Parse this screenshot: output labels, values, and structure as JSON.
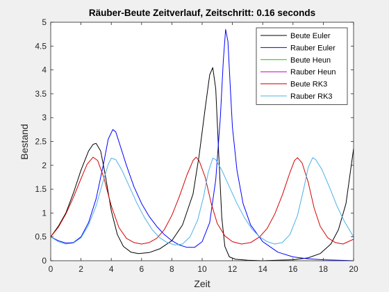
{
  "chart_data": {
    "type": "line",
    "title": "Räuber-Beute Zeitverlauf, Zeitschritt: 0.16 seconds",
    "xlabel": "Zeit",
    "ylabel": "Bestand",
    "xlim": [
      0,
      20
    ],
    "ylim": [
      0,
      5
    ],
    "xticks": [
      "0",
      "2",
      "4",
      "6",
      "8",
      "10",
      "12",
      "14",
      "16",
      "18",
      "20"
    ],
    "yticks": [
      "0",
      "0.5",
      "1",
      "1.5",
      "2",
      "2.5",
      "3",
      "3.5",
      "4",
      "4.5",
      "5"
    ],
    "grid": false,
    "legend_position": "top-right",
    "series": [
      {
        "name": "Beute Euler",
        "color": "#000000",
        "points": [
          [
            0,
            0.5
          ],
          [
            0.5,
            0.72
          ],
          [
            1,
            1.0
          ],
          [
            1.5,
            1.42
          ],
          [
            2,
            1.9
          ],
          [
            2.5,
            2.3
          ],
          [
            2.8,
            2.44
          ],
          [
            3.0,
            2.46
          ],
          [
            3.3,
            2.3
          ],
          [
            3.6,
            1.8
          ],
          [
            4,
            1.05
          ],
          [
            4.4,
            0.55
          ],
          [
            4.8,
            0.3
          ],
          [
            5.3,
            0.18
          ],
          [
            5.8,
            0.15
          ],
          [
            6.5,
            0.17
          ],
          [
            7.2,
            0.25
          ],
          [
            8,
            0.42
          ],
          [
            8.7,
            0.75
          ],
          [
            9.4,
            1.4
          ],
          [
            9.8,
            2.2
          ],
          [
            10.2,
            3.2
          ],
          [
            10.5,
            3.9
          ],
          [
            10.7,
            4.05
          ],
          [
            10.9,
            3.6
          ],
          [
            11.1,
            2.2
          ],
          [
            11.3,
            0.9
          ],
          [
            11.5,
            0.3
          ],
          [
            11.8,
            0.08
          ],
          [
            12.2,
            0.03
          ],
          [
            13,
            0.01
          ],
          [
            14,
            0.0
          ],
          [
            15,
            0.01
          ],
          [
            16,
            0.02
          ],
          [
            17,
            0.06
          ],
          [
            17.8,
            0.15
          ],
          [
            18.5,
            0.35
          ],
          [
            19,
            0.65
          ],
          [
            19.5,
            1.2
          ],
          [
            20,
            2.35
          ]
        ]
      },
      {
        "name": "Rauber Euler",
        "color": "#0000ff",
        "points": [
          [
            0,
            0.5
          ],
          [
            0.5,
            0.42
          ],
          [
            1,
            0.37
          ],
          [
            1.5,
            0.38
          ],
          [
            2,
            0.5
          ],
          [
            2.5,
            0.8
          ],
          [
            3,
            1.3
          ],
          [
            3.5,
            2.05
          ],
          [
            3.8,
            2.55
          ],
          [
            4.1,
            2.75
          ],
          [
            4.3,
            2.7
          ],
          [
            4.6,
            2.4
          ],
          [
            5,
            2.0
          ],
          [
            5.5,
            1.55
          ],
          [
            6,
            1.2
          ],
          [
            6.5,
            0.93
          ],
          [
            7,
            0.72
          ],
          [
            7.5,
            0.55
          ],
          [
            8,
            0.42
          ],
          [
            8.5,
            0.33
          ],
          [
            9,
            0.28
          ],
          [
            9.5,
            0.28
          ],
          [
            10,
            0.4
          ],
          [
            10.5,
            0.8
          ],
          [
            10.9,
            1.7
          ],
          [
            11.2,
            3.0
          ],
          [
            11.4,
            4.2
          ],
          [
            11.55,
            4.85
          ],
          [
            11.7,
            4.6
          ],
          [
            11.85,
            3.7
          ],
          [
            12,
            2.8
          ],
          [
            12.3,
            1.9
          ],
          [
            12.7,
            1.2
          ],
          [
            13.2,
            0.75
          ],
          [
            14,
            0.4
          ],
          [
            15,
            0.18
          ],
          [
            16,
            0.08
          ],
          [
            17,
            0.04
          ],
          [
            18,
            0.02
          ],
          [
            19,
            0.01
          ],
          [
            20,
            0.0
          ]
        ]
      },
      {
        "name": "Beute Heun",
        "color": "#00d000",
        "points": []
      },
      {
        "name": "Rauber Heun",
        "color": "#bf00bf",
        "points": []
      },
      {
        "name": "Beute RK3",
        "color": "#d40000",
        "points": [
          [
            0,
            0.5
          ],
          [
            0.5,
            0.7
          ],
          [
            1,
            0.98
          ],
          [
            1.5,
            1.33
          ],
          [
            2,
            1.72
          ],
          [
            2.4,
            2.02
          ],
          [
            2.8,
            2.17
          ],
          [
            3.1,
            2.1
          ],
          [
            3.5,
            1.75
          ],
          [
            4,
            1.15
          ],
          [
            4.5,
            0.7
          ],
          [
            5,
            0.47
          ],
          [
            5.5,
            0.38
          ],
          [
            6,
            0.35
          ],
          [
            6.5,
            0.38
          ],
          [
            7,
            0.47
          ],
          [
            7.5,
            0.65
          ],
          [
            8,
            0.95
          ],
          [
            8.5,
            1.35
          ],
          [
            9,
            1.8
          ],
          [
            9.4,
            2.1
          ],
          [
            9.6,
            2.17
          ],
          [
            9.8,
            2.1
          ],
          [
            10.2,
            1.75
          ],
          [
            10.6,
            1.2
          ],
          [
            11,
            0.78
          ],
          [
            11.5,
            0.52
          ],
          [
            12,
            0.4
          ],
          [
            12.6,
            0.35
          ],
          [
            13.2,
            0.38
          ],
          [
            13.8,
            0.5
          ],
          [
            14.3,
            0.68
          ],
          [
            14.8,
            0.98
          ],
          [
            15.3,
            1.38
          ],
          [
            15.8,
            1.85
          ],
          [
            16.1,
            2.1
          ],
          [
            16.3,
            2.16
          ],
          [
            16.6,
            2.05
          ],
          [
            17,
            1.65
          ],
          [
            17.4,
            1.1
          ],
          [
            17.8,
            0.72
          ],
          [
            18.3,
            0.48
          ],
          [
            18.8,
            0.38
          ],
          [
            19.3,
            0.35
          ],
          [
            20,
            0.45
          ]
        ]
      },
      {
        "name": "Rauber RK3",
        "color": "#4db0e6",
        "points": [
          [
            0,
            0.5
          ],
          [
            0.5,
            0.4
          ],
          [
            1,
            0.35
          ],
          [
            1.5,
            0.37
          ],
          [
            2,
            0.48
          ],
          [
            2.5,
            0.75
          ],
          [
            3,
            1.15
          ],
          [
            3.4,
            1.6
          ],
          [
            3.8,
            2.02
          ],
          [
            4.0,
            2.15
          ],
          [
            4.3,
            2.12
          ],
          [
            4.7,
            1.9
          ],
          [
            5.2,
            1.55
          ],
          [
            5.7,
            1.2
          ],
          [
            6.2,
            0.9
          ],
          [
            6.7,
            0.65
          ],
          [
            7.2,
            0.48
          ],
          [
            7.7,
            0.38
          ],
          [
            8.2,
            0.33
          ],
          [
            8.7,
            0.35
          ],
          [
            9.2,
            0.5
          ],
          [
            9.7,
            0.85
          ],
          [
            10.1,
            1.35
          ],
          [
            10.4,
            1.85
          ],
          [
            10.7,
            2.15
          ],
          [
            10.9,
            2.12
          ],
          [
            11.3,
            1.9
          ],
          [
            11.8,
            1.55
          ],
          [
            12.3,
            1.2
          ],
          [
            12.8,
            0.9
          ],
          [
            13.3,
            0.66
          ],
          [
            13.8,
            0.5
          ],
          [
            14.3,
            0.4
          ],
          [
            14.8,
            0.35
          ],
          [
            15.3,
            0.38
          ],
          [
            15.8,
            0.55
          ],
          [
            16.3,
            0.95
          ],
          [
            16.7,
            1.5
          ],
          [
            17.0,
            1.95
          ],
          [
            17.3,
            2.16
          ],
          [
            17.5,
            2.12
          ],
          [
            17.9,
            1.92
          ],
          [
            18.4,
            1.55
          ],
          [
            18.9,
            1.15
          ],
          [
            19.4,
            0.82
          ],
          [
            20,
            0.5
          ]
        ]
      }
    ]
  }
}
